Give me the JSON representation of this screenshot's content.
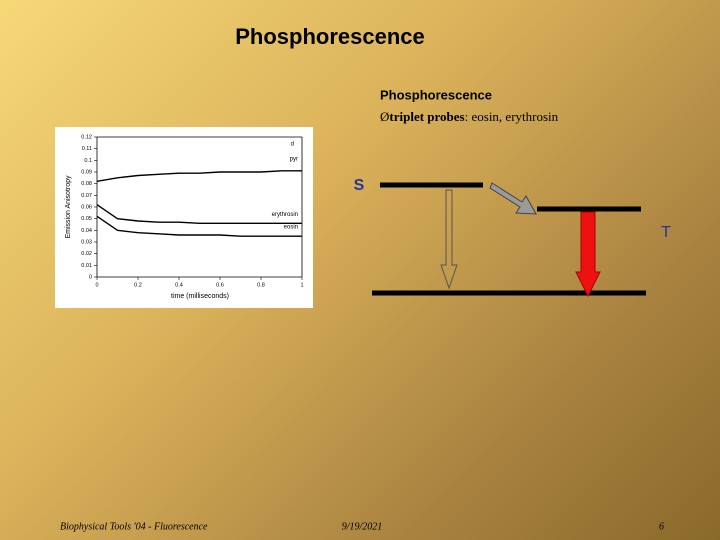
{
  "header": {
    "title": "Phosphorescence"
  },
  "body": {
    "heading": "Phosphorescence",
    "bullet": {
      "marker": "Ø",
      "term": "triplet probes",
      "text": ": eosin, erythrosin"
    }
  },
  "chart_data": {
    "type": "line",
    "x_label": "time (milliseconds)",
    "y_label": "Emission Anisotropy",
    "annotations": [
      "d"
    ],
    "x": [
      0,
      0.1,
      0.2,
      0.3,
      0.4,
      0.5,
      0.6,
      0.7,
      0.8,
      0.9,
      1
    ],
    "series": [
      {
        "name": "pyr",
        "color": "#000000",
        "values": [
          0.082,
          0.085,
          0.087,
          0.088,
          0.089,
          0.089,
          0.09,
          0.09,
          0.09,
          0.091,
          0.091
        ]
      },
      {
        "name": "erythrosin",
        "color": "#000000",
        "values": [
          0.062,
          0.05,
          0.048,
          0.047,
          0.047,
          0.046,
          0.046,
          0.046,
          0.046,
          0.046,
          0.046
        ]
      },
      {
        "name": "eosin",
        "color": "#000000",
        "values": [
          0.052,
          0.04,
          0.038,
          0.037,
          0.036,
          0.036,
          0.036,
          0.035,
          0.035,
          0.035,
          0.035
        ]
      }
    ],
    "xlim": [
      0,
      1
    ],
    "xticks": [
      0,
      0.2,
      0.4,
      0.6,
      0.8,
      1
    ],
    "ylim": [
      0,
      0.12
    ],
    "yticks": [
      0,
      0.01,
      0.02,
      0.03,
      0.04,
      0.05,
      0.06,
      0.07,
      0.08,
      0.09,
      0.1,
      0.11,
      0.12
    ]
  },
  "diagram": {
    "singlet_label": "S",
    "triplet_label": "T"
  },
  "footer": {
    "left": "Biophysical Tools '04 - Fluorescence",
    "center": "9/19/2021",
    "right": "6"
  }
}
